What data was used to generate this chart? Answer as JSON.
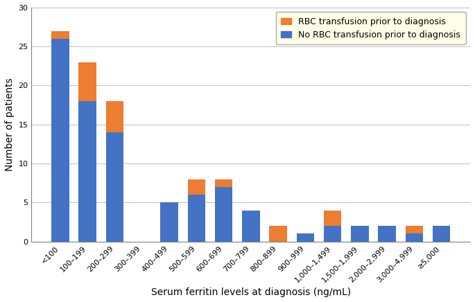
{
  "categories": [
    "<100",
    "100–199",
    "200–299",
    "300–399",
    "400–499",
    "500–599",
    "600–699",
    "700–799",
    "800–899",
    "900–999",
    "1,000–1,499",
    "1,500–1,999",
    "2,000–2,999",
    "3,000–4,999",
    "≥5,000"
  ],
  "no_rbc": [
    26,
    18,
    14,
    0,
    5,
    6,
    7,
    4,
    0,
    1,
    2,
    2,
    2,
    1,
    2
  ],
  "rbc": [
    1,
    5,
    4,
    0,
    0,
    2,
    1,
    0,
    2,
    0,
    2,
    0,
    0,
    1,
    0
  ],
  "color_no_rbc": "#4472C4",
  "color_rbc": "#ED7D31",
  "ylabel": "Number of patients",
  "xlabel": "Serum ferritin levels at diagnosis (ng/mL)",
  "ylim": [
    0,
    30
  ],
  "yticks": [
    0,
    5,
    10,
    15,
    20,
    25,
    30
  ],
  "legend_rbc": "RBC transfusion prior to diagnosis",
  "legend_no_rbc": "No RBC transfusion prior to diagnosis",
  "legend_bg": "#FFFDE7",
  "bg_color": "#FFFFFF",
  "grid_color": "#C0C0C0",
  "spine_color": "#808080",
  "tick_fontsize": 8,
  "label_fontsize": 10,
  "bar_width": 0.65
}
